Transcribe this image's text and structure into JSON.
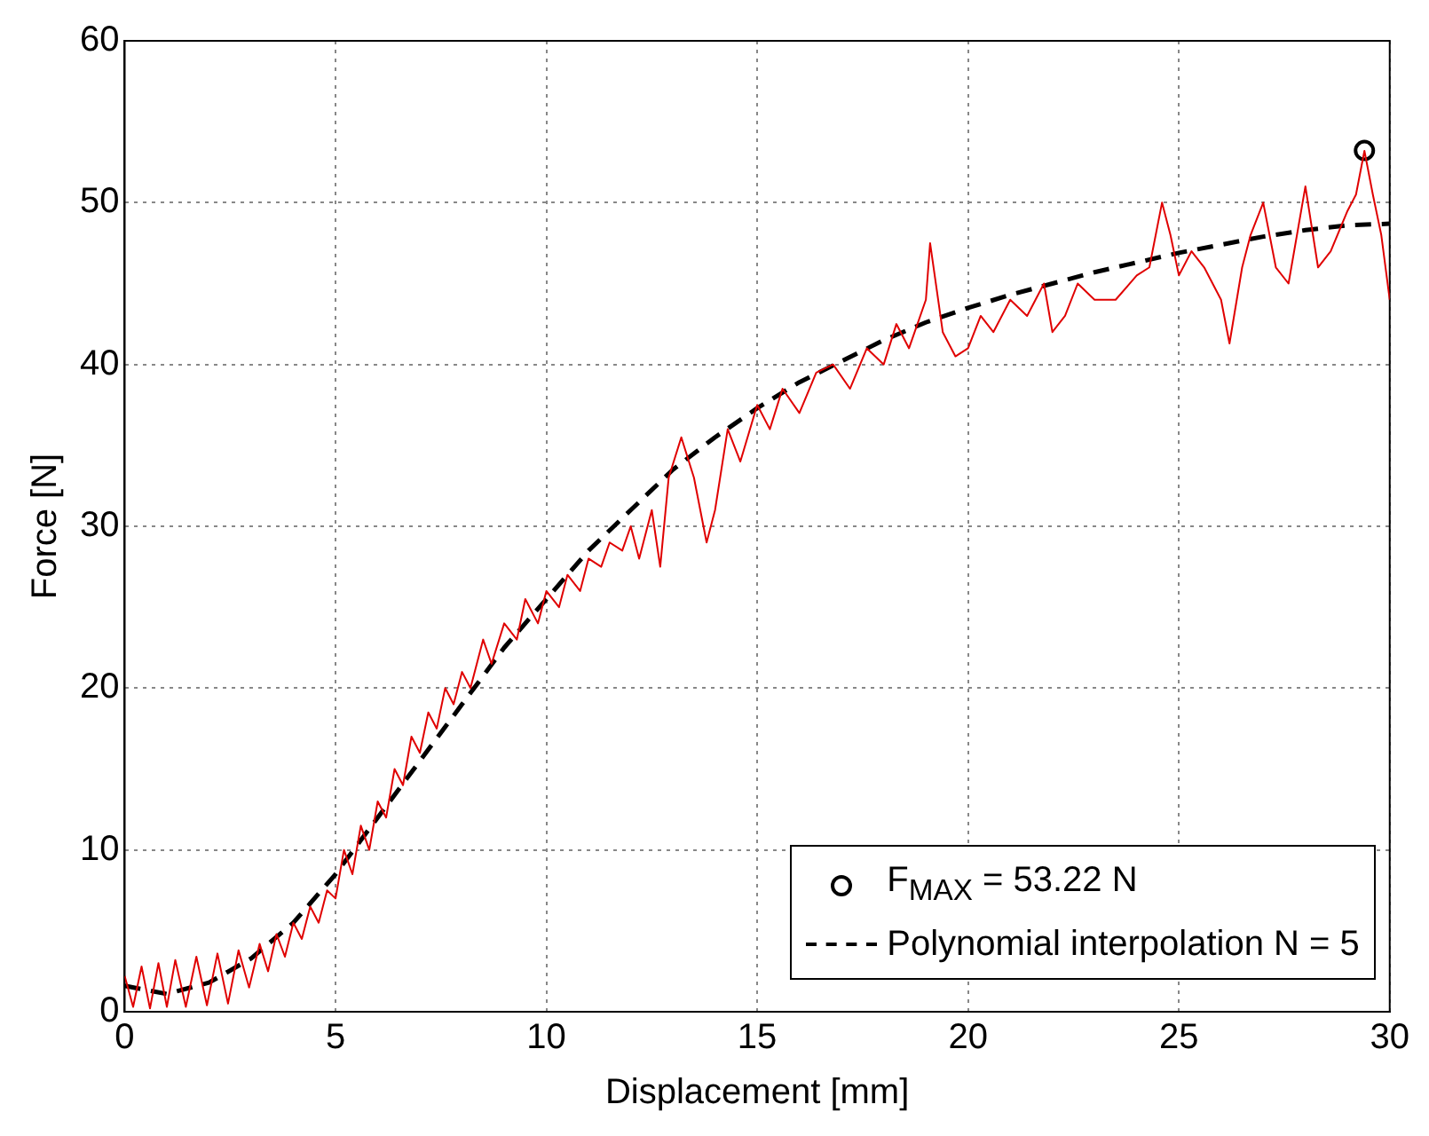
{
  "chart_data": {
    "type": "line",
    "xlabel": "Displacement [mm]",
    "ylabel": "Force [N]",
    "xlim": [
      0,
      30
    ],
    "xticks": [
      0,
      5,
      10,
      15,
      20,
      25,
      30
    ],
    "ylim": [
      0,
      60
    ],
    "yticks": [
      0,
      10,
      20,
      30,
      40,
      50,
      60
    ],
    "grid": true,
    "legend": "bottom right",
    "series": [
      {
        "color": "#e00000",
        "line_style": "solid",
        "marker": "none",
        "x": [
          0,
          0.2,
          0.4,
          0.6,
          0.8,
          1.0,
          1.2,
          1.45,
          1.7,
          1.95,
          2.2,
          2.45,
          2.7,
          2.95,
          3.2,
          3.4,
          3.6,
          3.8,
          4.0,
          4.2,
          4.4,
          4.6,
          4.8,
          5.0,
          5.2,
          5.4,
          5.6,
          5.8,
          6.0,
          6.2,
          6.4,
          6.6,
          6.8,
          7.0,
          7.2,
          7.4,
          7.6,
          7.8,
          8.0,
          8.2,
          8.5,
          8.7,
          9,
          9.3,
          9.5,
          9.8,
          10,
          10.3,
          10.5,
          10.8,
          11,
          11.3,
          11.5,
          11.8,
          12,
          12.2,
          12.5,
          12.7,
          12.9,
          13.2,
          13.5,
          13.8,
          14,
          14.3,
          14.6,
          15,
          15.3,
          15.6,
          16,
          16.4,
          16.8,
          17.2,
          17.6,
          18,
          18.3,
          18.6,
          19,
          19.1,
          19.4,
          19.7,
          20,
          20.3,
          20.6,
          21,
          21.4,
          21.8,
          22,
          22.3,
          22.6,
          23,
          23.5,
          24,
          24.3,
          24.6,
          24.8,
          25,
          25.3,
          25.6,
          26,
          26.2,
          26.5,
          26.7,
          27,
          27.3,
          27.6,
          28,
          28.3,
          28.6,
          29,
          29.2,
          29.4,
          29.6,
          29.8,
          30
        ],
        "values": [
          2.2,
          0.3,
          2.8,
          0.2,
          3,
          0.3,
          3.2,
          0.3,
          3.4,
          0.4,
          3.6,
          0.5,
          3.8,
          1.5,
          4.2,
          2.5,
          4.8,
          3.4,
          5.5,
          4.5,
          6.5,
          5.5,
          7.5,
          7,
          10,
          8.5,
          11.5,
          10,
          13,
          12,
          15,
          14,
          17,
          16,
          18.5,
          17.5,
          20,
          19,
          21,
          20,
          23,
          21.5,
          24,
          23,
          25.5,
          24,
          26,
          25,
          27,
          26,
          28,
          27.5,
          29,
          28.5,
          30,
          28,
          31,
          27.5,
          33,
          35.5,
          33,
          29,
          31,
          36,
          34,
          37.5,
          36,
          38.5,
          37,
          39.5,
          40,
          38.5,
          41,
          40,
          42.5,
          41,
          44,
          47.5,
          42,
          40.5,
          41,
          43,
          42,
          44,
          43,
          45,
          42,
          43,
          45,
          44,
          44,
          45.5,
          46,
          50,
          48,
          45.5,
          47,
          46,
          44,
          41.3,
          46,
          48,
          50,
          46,
          45,
          51,
          46,
          47,
          49.5,
          50.5,
          53.2,
          50.5,
          48,
          44
        ]
      },
      {
        "type": "scatter",
        "name": "F$_{MAX}$ = 53.22 N",
        "color": "#000000",
        "marker": "circle",
        "x": [
          29.4
        ],
        "values": [
          53.22
        ]
      },
      {
        "name": "Polynomial interpolation N = 5",
        "color": "#000000",
        "line_style": "dashed",
        "marker": "none",
        "x": [
          0,
          1,
          2,
          3,
          4,
          5,
          6,
          7,
          8,
          9,
          10,
          11,
          12,
          13,
          14,
          15,
          16,
          17,
          18,
          19,
          20,
          21,
          22,
          23,
          24,
          25,
          26,
          27,
          28,
          29,
          30
        ],
        "values": [
          1.6,
          1.1,
          1.8,
          3.3,
          5.5,
          8.5,
          12,
          15.5,
          19,
          22.5,
          25.5,
          28.5,
          31,
          33.5,
          35.5,
          37.3,
          38.9,
          40.2,
          41.5,
          42.6,
          43.5,
          44.3,
          45,
          45.7,
          46.3,
          46.9,
          47.4,
          47.9,
          48.3,
          48.6,
          48.7
        ]
      }
    ]
  }
}
